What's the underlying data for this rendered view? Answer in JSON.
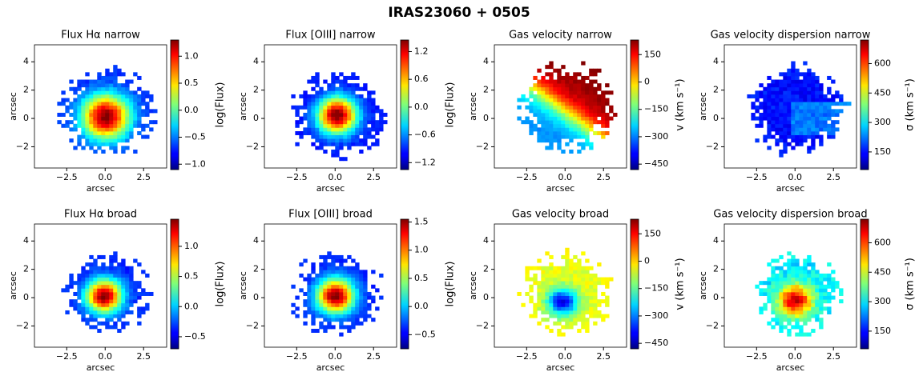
{
  "title": "IRAS23060 + 0505",
  "chart_data": [
    {
      "type": "heatmap",
      "title": "Flux Hα narrow",
      "xlabel": "arcsec",
      "ylabel": "arcsec",
      "xlim": [
        -4.6,
        4.0
      ],
      "ylim": [
        -3.5,
        5.2
      ],
      "xticks": [
        {
          "value": -2.5,
          "label": "−2.5"
        },
        {
          "value": 0,
          "label": "0.0"
        },
        2.5
      ],
      "yticks": [
        {
          "value": -2,
          "label": "−2"
        },
        0,
        2,
        4
      ],
      "colormap": "jet",
      "colorbar": {
        "label": "log(Flux)",
        "lim": [
          -1.1,
          1.3
        ],
        "ticks": [
          {
            "value": -1,
            "label": "−1.0"
          },
          {
            "value": -0.5,
            "label": "−0.5"
          },
          {
            "value": 0,
            "label": "0.0"
          },
          0.5,
          {
            "value": 1,
            "label": "1.0"
          }
        ]
      }
    },
    {
      "type": "heatmap",
      "title": "Flux [OIII] narrow",
      "xlabel": "arcsec",
      "ylabel": "arcsec",
      "xlim": [
        -4.6,
        4.0
      ],
      "ylim": [
        -3.5,
        5.2
      ],
      "xticks": [
        {
          "value": -2.5,
          "label": "−2.5"
        },
        {
          "value": 0,
          "label": "0.0"
        },
        2.5
      ],
      "yticks": [
        {
          "value": -2,
          "label": "−2"
        },
        0,
        2,
        4
      ],
      "colormap": "jet",
      "colorbar": {
        "label": "log(Flux)",
        "lim": [
          -1.35,
          1.45
        ],
        "ticks": [
          {
            "value": -1.2,
            "label": "−1.2"
          },
          {
            "value": -0.6,
            "label": "−0.6"
          },
          {
            "value": 0,
            "label": "0.0"
          },
          0.6,
          1.2
        ]
      }
    },
    {
      "type": "heatmap",
      "title": "Gas velocity narrow",
      "xlabel": "arcsec",
      "ylabel": "arcsec",
      "xlim": [
        -4.6,
        4.0
      ],
      "ylim": [
        -3.5,
        5.2
      ],
      "xticks": [
        {
          "value": -2.5,
          "label": "−2.5"
        },
        {
          "value": 0,
          "label": "0.0"
        },
        2.5
      ],
      "yticks": [
        {
          "value": -2,
          "label": "−2"
        },
        0,
        2,
        4
      ],
      "colormap": "jet",
      "colorbar": {
        "label": "v (km s⁻¹)",
        "lim": [
          -480,
          230
        ],
        "ticks": [
          {
            "value": -450,
            "label": "−450"
          },
          {
            "value": -300,
            "label": "−300"
          },
          {
            "value": -150,
            "label": "−150"
          },
          0,
          150
        ]
      }
    },
    {
      "type": "heatmap",
      "title": "Gas velocity dispersion narrow",
      "xlabel": "arcsec",
      "ylabel": "arcsec",
      "xlim": [
        -4.6,
        4.0
      ],
      "ylim": [
        -3.5,
        5.2
      ],
      "xticks": [
        {
          "value": -2.5,
          "label": "−2.5"
        },
        {
          "value": 0,
          "label": "0.0"
        },
        2.5
      ],
      "yticks": [
        {
          "value": -2,
          "label": "−2"
        },
        0,
        2,
        4
      ],
      "colormap": "jet",
      "colorbar": {
        "label": "σ (km s⁻¹)",
        "lim": [
          60,
          720
        ],
        "ticks": [
          150,
          300,
          450,
          600
        ]
      }
    },
    {
      "type": "heatmap",
      "title": "Flux Hα broad",
      "xlabel": "arcsec",
      "ylabel": "arcsec",
      "xlim": [
        -4.6,
        4.0
      ],
      "ylim": [
        -3.5,
        5.2
      ],
      "xticks": [
        {
          "value": -2.5,
          "label": "−2.5"
        },
        {
          "value": 0,
          "label": "0.0"
        },
        2.5
      ],
      "yticks": [
        {
          "value": -2,
          "label": "−2"
        },
        0,
        2,
        4
      ],
      "colormap": "jet",
      "colorbar": {
        "label": "log(Flux)",
        "lim": [
          -0.7,
          1.45
        ],
        "ticks": [
          {
            "value": -0.5,
            "label": "−0.5"
          },
          {
            "value": 0,
            "label": "0.0"
          },
          0.5,
          {
            "value": 1,
            "label": "1.0"
          }
        ]
      }
    },
    {
      "type": "heatmap",
      "title": "Flux [OIII] broad",
      "xlabel": "arcsec",
      "ylabel": "arcsec",
      "xlim": [
        -4.6,
        4.0
      ],
      "ylim": [
        -3.5,
        5.2
      ],
      "xticks": [
        {
          "value": -2.5,
          "label": "−2.5"
        },
        {
          "value": 0,
          "label": "0.0"
        },
        2.5
      ],
      "yticks": [
        {
          "value": -2,
          "label": "−2"
        },
        0,
        2,
        4
      ],
      "colormap": "jet",
      "colorbar": {
        "label": "log(Flux)",
        "lim": [
          -0.75,
          1.55
        ],
        "ticks": [
          {
            "value": -0.5,
            "label": "−0.5"
          },
          {
            "value": 0,
            "label": "0.0"
          },
          0.5,
          {
            "value": 1,
            "label": "1.0"
          },
          1.5
        ]
      }
    },
    {
      "type": "heatmap",
      "title": "Gas velocity broad",
      "xlabel": "arcsec",
      "ylabel": "arcsec",
      "xlim": [
        -4.6,
        4.0
      ],
      "ylim": [
        -3.5,
        5.2
      ],
      "xticks": [
        {
          "value": -2.5,
          "label": "−2.5"
        },
        {
          "value": 0,
          "label": "0.0"
        },
        2.5
      ],
      "yticks": [
        {
          "value": -2,
          "label": "−2"
        },
        0,
        2,
        4
      ],
      "colormap": "jet",
      "colorbar": {
        "label": "v (km s⁻¹)",
        "lim": [
          -480,
          230
        ],
        "ticks": [
          {
            "value": -450,
            "label": "−450"
          },
          {
            "value": -300,
            "label": "−300"
          },
          {
            "value": -150,
            "label": "−150"
          },
          0,
          150
        ]
      }
    },
    {
      "type": "heatmap",
      "title": "Gas velocity dispersion broad",
      "xlabel": "arcsec",
      "ylabel": "arcsec",
      "xlim": [
        -4.6,
        4.0
      ],
      "ylim": [
        -3.5,
        5.2
      ],
      "xticks": [
        {
          "value": -2.5,
          "label": "−2.5"
        },
        {
          "value": 0,
          "label": "0.0"
        },
        2.5
      ],
      "yticks": [
        {
          "value": -2,
          "label": "−2"
        },
        0,
        2,
        4
      ],
      "colormap": "jet",
      "colorbar": {
        "label": "σ (km s⁻¹)",
        "lim": [
          60,
          720
        ],
        "ticks": [
          150,
          300,
          450,
          600
        ]
      }
    }
  ]
}
